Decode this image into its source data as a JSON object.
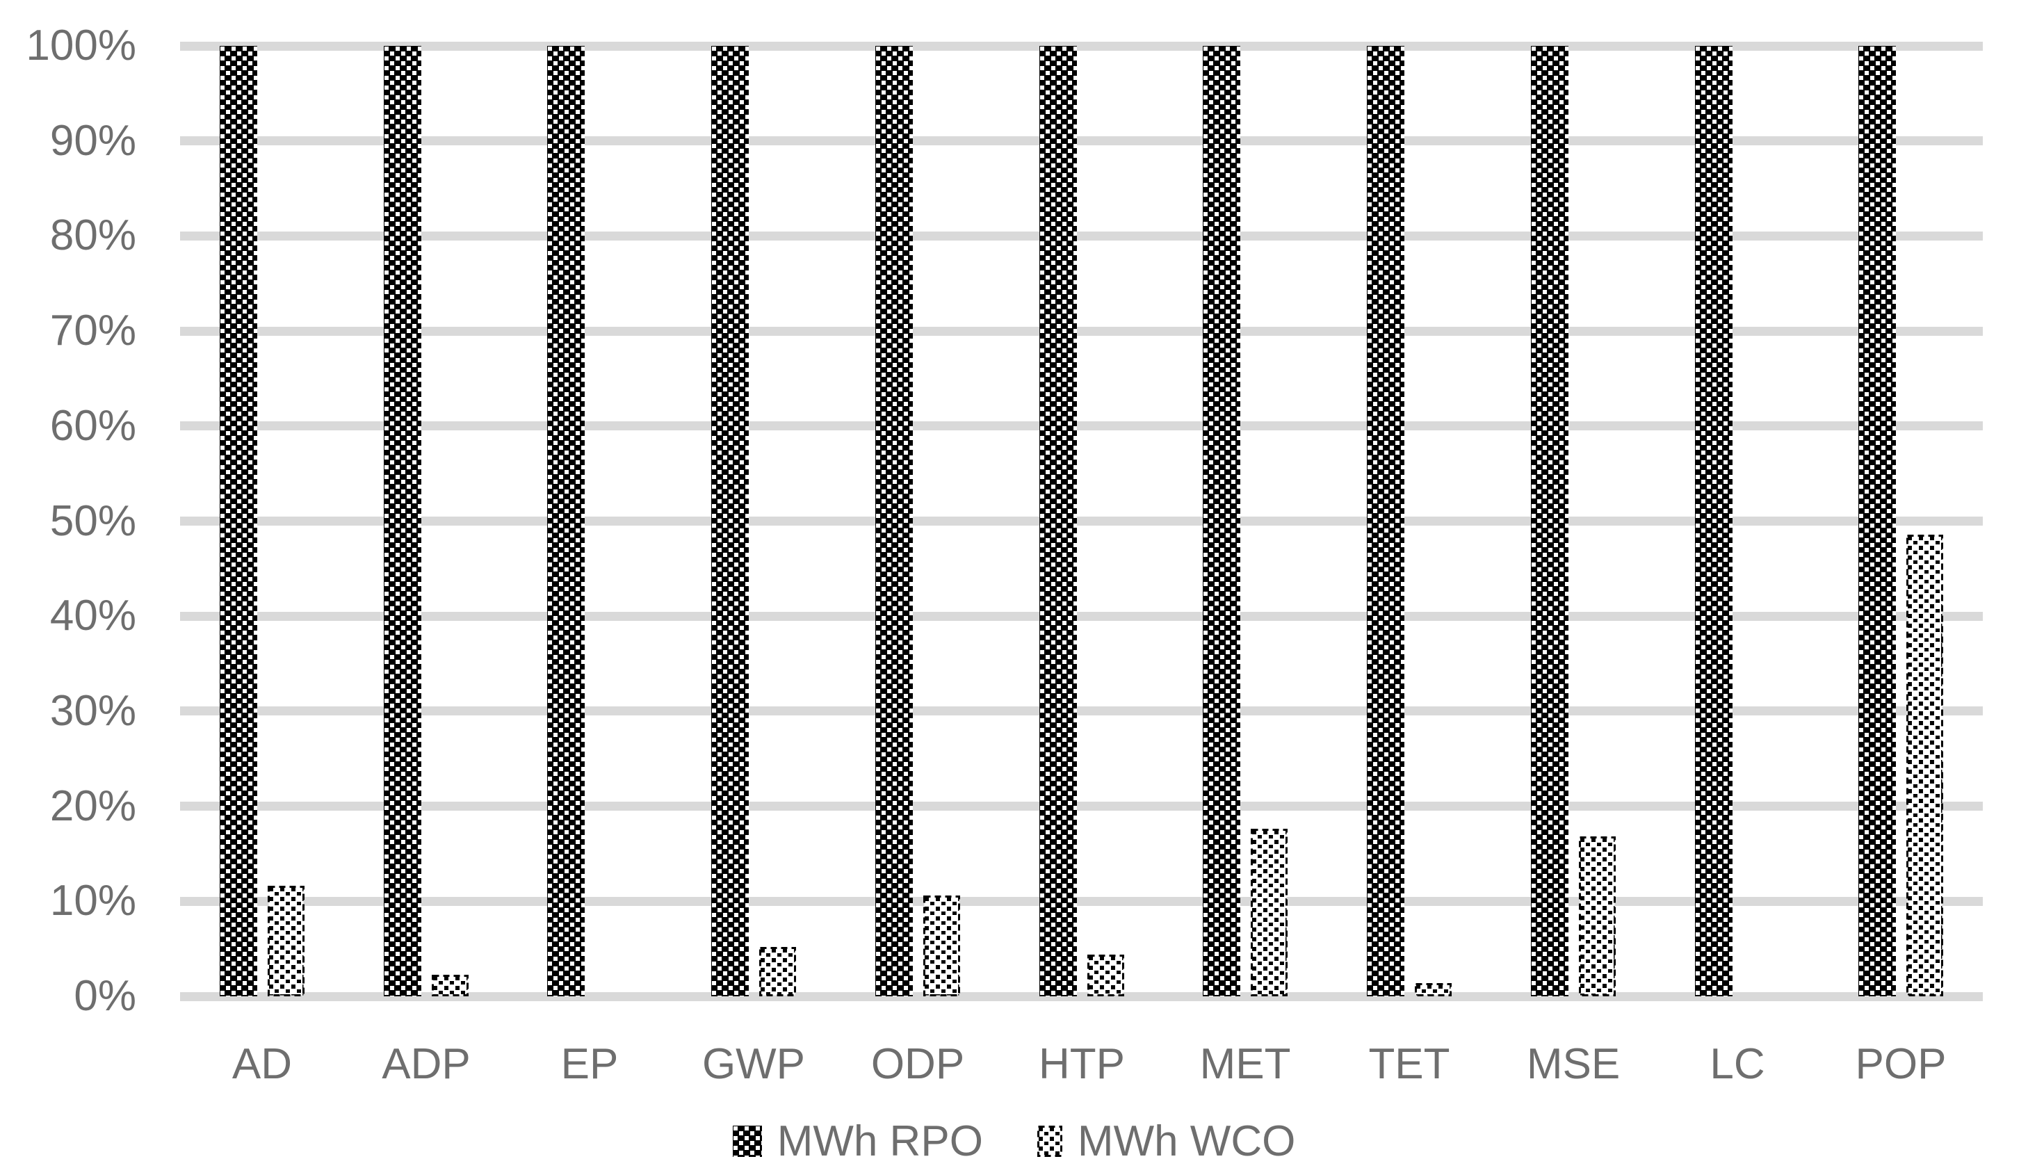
{
  "chart_data": {
    "type": "bar",
    "title": "",
    "xlabel": "",
    "ylabel": "",
    "categories": [
      "AD",
      "ADP",
      "EP",
      "GWP",
      "ODP",
      "HTP",
      "MET",
      "TET",
      "MSE",
      "LC",
      "POP"
    ],
    "series": [
      {
        "name": "MWh RPO",
        "pattern": "white-dots-on-black",
        "values": [
          100,
          100,
          100,
          100,
          100,
          100,
          100,
          100,
          100,
          100,
          100
        ]
      },
      {
        "name": "MWh WCO",
        "pattern": "black-dots-on-white-dashed-outline",
        "values": [
          11.6,
          2.3,
          0,
          5.2,
          10.6,
          4.4,
          17.6,
          1.4,
          16.8,
          0,
          48.6
        ]
      }
    ],
    "y_axis": {
      "min": 0,
      "max": 100,
      "step": 10,
      "tick_labels": [
        "0%",
        "10%",
        "20%",
        "30%",
        "40%",
        "50%",
        "60%",
        "70%",
        "80%",
        "90%",
        "100%"
      ]
    },
    "grid": true,
    "legend_position": "bottom",
    "colors": {
      "background": "#ffffff",
      "gridline": "#d9d9d9",
      "axis_text": "#6e6e6e",
      "bar_ink": "#000000"
    }
  }
}
